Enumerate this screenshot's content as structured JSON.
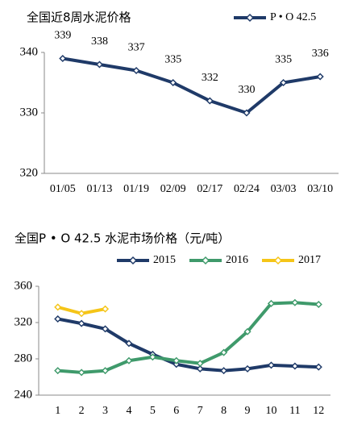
{
  "chart_data": [
    {
      "type": "line",
      "title": "全国近8周水泥价格",
      "categories": [
        "01/05",
        "01/13",
        "01/19",
        "02/09",
        "02/17",
        "02/24",
        "03/03",
        "03/10"
      ],
      "series": [
        {
          "name": "P • O 42.5",
          "color": "#1f3a68",
          "values": [
            339,
            338,
            337,
            335,
            332,
            330,
            335,
            336
          ]
        }
      ],
      "ylim": [
        320,
        340
      ],
      "yticks": [
        320,
        330,
        340
      ],
      "data_labels": true,
      "grid": false
    },
    {
      "type": "line",
      "title": "全国P • O 42.5 水泥市场价格（元/吨）",
      "categories": [
        "1",
        "2",
        "3",
        "4",
        "5",
        "6",
        "7",
        "8",
        "9",
        "10",
        "11",
        "12"
      ],
      "series": [
        {
          "name": "2015",
          "color": "#1f3a68",
          "values": [
            324,
            319,
            313,
            297,
            285,
            274,
            269,
            267,
            269,
            273,
            272,
            271
          ]
        },
        {
          "name": "2016",
          "color": "#3f9a6b",
          "values": [
            267,
            265,
            267,
            278,
            282,
            278,
            275,
            287,
            310,
            341,
            342,
            340
          ]
        },
        {
          "name": "2017",
          "color": "#f5c518",
          "values": [
            337,
            330,
            335,
            null,
            null,
            null,
            null,
            null,
            null,
            null,
            null,
            null
          ]
        }
      ],
      "ylim": [
        240,
        360
      ],
      "yticks": [
        240,
        280,
        320,
        360
      ],
      "data_labels": false,
      "grid": false
    }
  ]
}
